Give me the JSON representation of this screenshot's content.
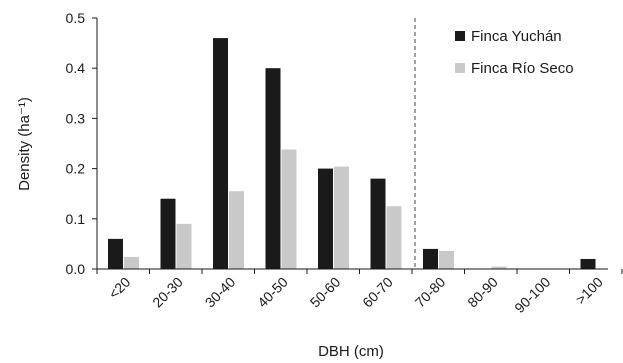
{
  "chart_data": {
    "type": "bar",
    "categories": [
      "<20",
      "20-30",
      "30-40",
      "40-50",
      "50-60",
      "60-70",
      "70-80",
      "80-90",
      "90-100",
      ">100"
    ],
    "series": [
      {
        "name": "Finca Yuchán",
        "color": "#1a1a1a",
        "values": [
          0.06,
          0.14,
          0.46,
          0.4,
          0.2,
          0.18,
          0.04,
          0.0,
          0.0,
          0.02
        ]
      },
      {
        "name": "Finca Río Seco",
        "color": "#c9c9c9",
        "values": [
          0.024,
          0.09,
          0.155,
          0.238,
          0.204,
          0.125,
          0.036,
          0.005,
          0.0,
          0.0
        ]
      }
    ],
    "xlabel": "DBH (cm)",
    "ylabel": "Density (ha⁻¹)",
    "ylim": [
      0,
      0.5
    ],
    "yticks": [
      "0.0",
      "0.1",
      "0.2",
      "0.3",
      "0.4",
      "0.5"
    ],
    "grid": false,
    "legend_position": "top-right",
    "reference_line": {
      "style": "dashed",
      "between_categories": [
        "60-70",
        "70-80"
      ]
    }
  }
}
